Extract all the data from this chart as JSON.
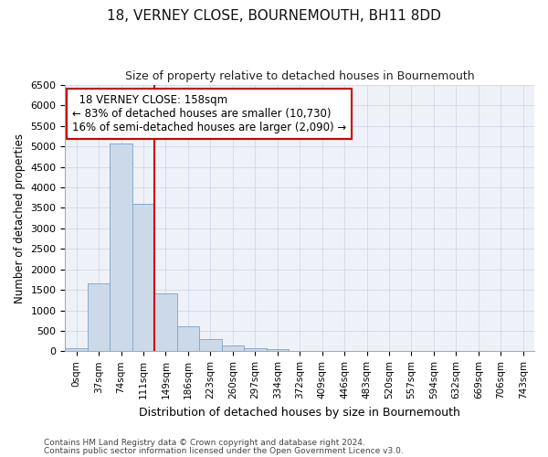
{
  "title": "18, VERNEY CLOSE, BOURNEMOUTH, BH11 8DD",
  "subtitle": "Size of property relative to detached houses in Bournemouth",
  "xlabel": "Distribution of detached houses by size in Bournemouth",
  "ylabel": "Number of detached properties",
  "footer_line1": "Contains HM Land Registry data © Crown copyright and database right 2024.",
  "footer_line2": "Contains public sector information licensed under the Open Government Licence v3.0.",
  "bar_categories": [
    "0sqm",
    "37sqm",
    "74sqm",
    "111sqm",
    "149sqm",
    "186sqm",
    "223sqm",
    "260sqm",
    "297sqm",
    "334sqm",
    "372sqm",
    "409sqm",
    "446sqm",
    "483sqm",
    "520sqm",
    "557sqm",
    "594sqm",
    "632sqm",
    "669sqm",
    "706sqm",
    "743sqm"
  ],
  "bar_values": [
    70,
    1650,
    5080,
    3600,
    1420,
    610,
    290,
    150,
    70,
    50,
    0,
    0,
    0,
    0,
    0,
    0,
    0,
    0,
    0,
    0,
    0
  ],
  "bar_color": "#ccd9e8",
  "bar_edge_color": "#88aacc",
  "ylim": [
    0,
    6500
  ],
  "yticks": [
    0,
    500,
    1000,
    1500,
    2000,
    2500,
    3000,
    3500,
    4000,
    4500,
    5000,
    5500,
    6000,
    6500
  ],
  "annotation_line1": "18 VERNEY CLOSE: 158sqm",
  "annotation_line2": "← 83% of detached houses are smaller (10,730)",
  "annotation_line3": "16% of semi-detached houses are larger (2,090) →",
  "vline_color": "#cc0000",
  "annotation_box_color": "#ffffff",
  "annotation_box_edge": "#cc0000",
  "grid_color": "#d0d8e8",
  "background_color": "#eef2f8"
}
